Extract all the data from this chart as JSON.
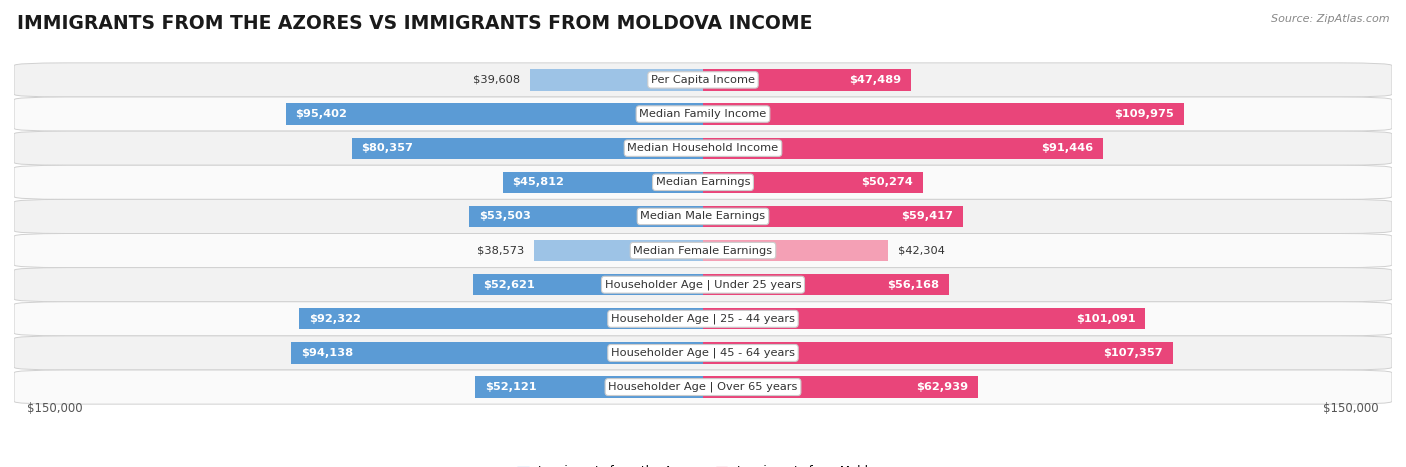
{
  "title": "IMMIGRANTS FROM THE AZORES VS IMMIGRANTS FROM MOLDOVA INCOME",
  "source": "Source: ZipAtlas.com",
  "categories": [
    "Per Capita Income",
    "Median Family Income",
    "Median Household Income",
    "Median Earnings",
    "Median Male Earnings",
    "Median Female Earnings",
    "Householder Age | Under 25 years",
    "Householder Age | 25 - 44 years",
    "Householder Age | 45 - 64 years",
    "Householder Age | Over 65 years"
  ],
  "azores_values": [
    39608,
    95402,
    80357,
    45812,
    53503,
    38573,
    52621,
    92322,
    94138,
    52121
  ],
  "moldova_values": [
    47489,
    109975,
    91446,
    50274,
    59417,
    42304,
    56168,
    101091,
    107357,
    62939
  ],
  "azores_labels": [
    "$39,608",
    "$95,402",
    "$80,357",
    "$45,812",
    "$53,503",
    "$38,573",
    "$52,621",
    "$92,322",
    "$94,138",
    "$52,121"
  ],
  "moldova_labels": [
    "$47,489",
    "$109,975",
    "$91,446",
    "$50,274",
    "$59,417",
    "$42,304",
    "$56,168",
    "$101,091",
    "$107,357",
    "$62,939"
  ],
  "azores_color_strong": "#5b9bd5",
  "azores_color_light": "#9dc3e6",
  "moldova_color_strong": "#e9457a",
  "moldova_color_light": "#f4a0b5",
  "legend_azores": "Immigrants from the Azores",
  "legend_moldova": "Immigrants from Moldova",
  "axis_label": "$150,000",
  "max_value": 150000,
  "inside_threshold": 0.3,
  "bar_height": 0.62,
  "bg_row_even": "#f2f2f2",
  "bg_row_odd": "#fafafa",
  "title_fontsize": 13.5,
  "label_fontsize": 8.2,
  "category_fontsize": 8.2,
  "source_fontsize": 8.0,
  "axis_tick_fontsize": 8.5
}
